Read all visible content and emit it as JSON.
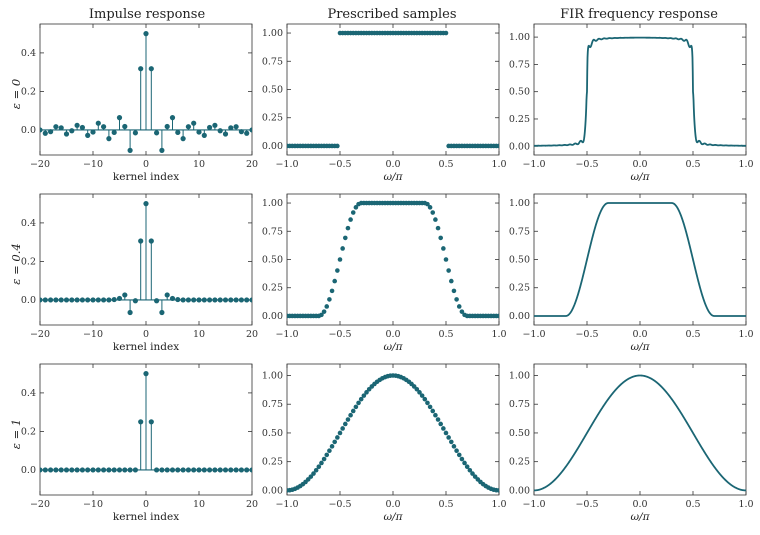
{
  "figure": {
    "column_titles": [
      "Impulse response",
      "Prescribed samples",
      "FIR frequency response"
    ],
    "row_labels": [
      "ε = 0",
      "ε = 0.4",
      "ε = 1"
    ],
    "color": "#1b6674"
  },
  "chart_data": [
    {
      "id": "r0c0",
      "type": "stem",
      "row": 0,
      "col": 0,
      "xlabel": "kernel index",
      "ylabel": "ε = 0",
      "xlim": [
        -20,
        20
      ],
      "ylim": [
        -0.13,
        0.55
      ],
      "xticks": [
        -20,
        -10,
        0,
        10,
        20
      ],
      "xtick_labels": [
        "−20",
        "−10",
        "0",
        "10",
        "20"
      ],
      "yticks": [
        0,
        0.2,
        0.4
      ],
      "ytick_labels": [
        "0.0",
        "0.2",
        "0.4"
      ],
      "x": [
        -20,
        -19,
        -18,
        -17,
        -16,
        -15,
        -14,
        -13,
        -12,
        -11,
        -10,
        -9,
        -8,
        -7,
        -6,
        -5,
        -4,
        -3,
        -2,
        -1,
        0,
        1,
        2,
        3,
        4,
        5,
        6,
        7,
        8,
        9,
        10,
        11,
        12,
        13,
        14,
        15,
        16,
        17,
        18,
        19,
        20
      ],
      "values": [
        0.0,
        -0.017,
        -0.009,
        0.017,
        0.011,
        -0.021,
        -0.004,
        0.024,
        0.013,
        -0.028,
        -0.011,
        0.035,
        0.017,
        -0.045,
        -0.013,
        0.064,
        0.018,
        -0.106,
        -0.015,
        0.318,
        0.5,
        0.318,
        -0.015,
        -0.106,
        0.018,
        0.064,
        -0.013,
        -0.045,
        0.017,
        0.035,
        -0.011,
        -0.028,
        0.013,
        0.024,
        -0.004,
        -0.021,
        0.011,
        0.017,
        -0.009,
        -0.017,
        0.0
      ]
    },
    {
      "id": "r0c1",
      "type": "scatter",
      "row": 0,
      "col": 1,
      "xlabel": "ω/π",
      "xlim": [
        -1,
        1
      ],
      "ylim": [
        -0.08,
        1.08
      ],
      "xticks": [
        -1,
        -0.5,
        0,
        0.5,
        1
      ],
      "xtick_labels": [
        "−1.0",
        "−0.5",
        "0.0",
        "0.5",
        "1.0"
      ],
      "yticks": [
        0,
        0.25,
        0.5,
        0.75,
        1
      ],
      "ytick_labels": [
        "0.00",
        "0.25",
        "0.50",
        "0.75",
        "1.00"
      ],
      "profile": {
        "kind": "step",
        "cutoff": 0.5,
        "n_points": 81
      }
    },
    {
      "id": "r0c2",
      "type": "line",
      "row": 0,
      "col": 2,
      "xlabel": "ω/π",
      "xlim": [
        -1,
        1
      ],
      "ylim": [
        -0.08,
        1.12
      ],
      "xticks": [
        -1,
        -0.5,
        0,
        0.5,
        1
      ],
      "xtick_labels": [
        "−1.0",
        "−0.5",
        "0.0",
        "0.5",
        "1.0"
      ],
      "yticks": [
        0,
        0.25,
        0.5,
        0.75,
        1
      ],
      "ytick_labels": [
        "0.00",
        "0.25",
        "0.50",
        "0.75",
        "1.00"
      ],
      "profile": {
        "kind": "gibbs",
        "cutoff": 0.5,
        "overshoot": 0.09,
        "ripple_period": 0.05
      }
    },
    {
      "id": "r1c0",
      "type": "stem",
      "row": 1,
      "col": 0,
      "xlabel": "kernel index",
      "ylabel": "ε = 0.4",
      "xlim": [
        -20,
        20
      ],
      "ylim": [
        -0.13,
        0.55
      ],
      "xticks": [
        -20,
        -10,
        0,
        10,
        20
      ],
      "xtick_labels": [
        "−20",
        "−10",
        "0",
        "10",
        "20"
      ],
      "yticks": [
        0,
        0.2,
        0.4
      ],
      "ytick_labels": [
        "0.0",
        "0.2",
        "0.4"
      ],
      "x": [
        -20,
        -19,
        -18,
        -17,
        -16,
        -15,
        -14,
        -13,
        -12,
        -11,
        -10,
        -9,
        -8,
        -7,
        -6,
        -5,
        -4,
        -3,
        -2,
        -1,
        0,
        1,
        2,
        3,
        4,
        5,
        6,
        7,
        8,
        9,
        10,
        11,
        12,
        13,
        14,
        15,
        16,
        17,
        18,
        19,
        20
      ],
      "values": [
        0,
        0,
        0,
        0,
        0,
        0,
        0,
        0,
        0,
        0,
        0,
        0,
        0,
        0,
        0.002,
        0.008,
        0.026,
        -0.065,
        -0.004,
        0.306,
        0.5,
        0.306,
        -0.004,
        -0.065,
        0.026,
        0.008,
        0.002,
        0,
        0,
        0,
        0,
        0,
        0,
        0,
        0,
        0,
        0,
        0,
        0,
        0,
        0
      ]
    },
    {
      "id": "r1c1",
      "type": "scatter",
      "row": 1,
      "col": 1,
      "xlabel": "ω/π",
      "xlim": [
        -1,
        1
      ],
      "ylim": [
        -0.08,
        1.08
      ],
      "xticks": [
        -1,
        -0.5,
        0,
        0.5,
        1
      ],
      "xtick_labels": [
        "−1.0",
        "−0.5",
        "0.0",
        "0.5",
        "1.0"
      ],
      "yticks": [
        0,
        0.25,
        0.5,
        0.75,
        1
      ],
      "ytick_labels": [
        "0.00",
        "0.25",
        "0.50",
        "0.75",
        "1.00"
      ],
      "profile": {
        "kind": "raised_cosine",
        "cutoff": 0.5,
        "epsilon": 0.4,
        "n_points": 81
      }
    },
    {
      "id": "r1c2",
      "type": "line",
      "row": 1,
      "col": 2,
      "xlabel": "ω/π",
      "xlim": [
        -1,
        1
      ],
      "ylim": [
        -0.08,
        1.08
      ],
      "xticks": [
        -1,
        -0.5,
        0,
        0.5,
        1
      ],
      "xtick_labels": [
        "−1.0",
        "−0.5",
        "0.0",
        "0.5",
        "1.0"
      ],
      "yticks": [
        0,
        0.25,
        0.5,
        0.75,
        1
      ],
      "ytick_labels": [
        "0.00",
        "0.25",
        "0.50",
        "0.75",
        "1.00"
      ],
      "profile": {
        "kind": "raised_cosine",
        "cutoff": 0.5,
        "epsilon": 0.4
      }
    },
    {
      "id": "r2c0",
      "type": "stem",
      "row": 2,
      "col": 0,
      "xlabel": "kernel index",
      "ylabel": "ε = 1",
      "xlim": [
        -20,
        20
      ],
      "ylim": [
        -0.13,
        0.55
      ],
      "xticks": [
        -20,
        -10,
        0,
        10,
        20
      ],
      "xtick_labels": [
        "−20",
        "−10",
        "0",
        "10",
        "20"
      ],
      "yticks": [
        0,
        0.2,
        0.4
      ],
      "ytick_labels": [
        "0.0",
        "0.2",
        "0.4"
      ],
      "x": [
        -20,
        -19,
        -18,
        -17,
        -16,
        -15,
        -14,
        -13,
        -12,
        -11,
        -10,
        -9,
        -8,
        -7,
        -6,
        -5,
        -4,
        -3,
        -2,
        -1,
        0,
        1,
        2,
        3,
        4,
        5,
        6,
        7,
        8,
        9,
        10,
        11,
        12,
        13,
        14,
        15,
        16,
        17,
        18,
        19,
        20
      ],
      "values": [
        0,
        0,
        0,
        0,
        0,
        0,
        0,
        0,
        0,
        0,
        0,
        0,
        0,
        0,
        0,
        0,
        0,
        0,
        0,
        0.25,
        0.5,
        0.25,
        0,
        0,
        0,
        0,
        0,
        0,
        0,
        0,
        0,
        0,
        0,
        0,
        0,
        0,
        0,
        0,
        0,
        0,
        0
      ]
    },
    {
      "id": "r2c1",
      "type": "scatter",
      "row": 2,
      "col": 1,
      "xlabel": "ω/π",
      "xlim": [
        -1,
        1
      ],
      "ylim": [
        -0.04,
        1.1
      ],
      "xticks": [
        -1,
        -0.5,
        0,
        0.5,
        1
      ],
      "xtick_labels": [
        "−1.0",
        "−0.5",
        "0.0",
        "0.5",
        "1.0"
      ],
      "yticks": [
        0,
        0.25,
        0.5,
        0.75,
        1
      ],
      "ytick_labels": [
        "0.00",
        "0.25",
        "0.50",
        "0.75",
        "1.00"
      ],
      "profile": {
        "kind": "raised_cosine",
        "cutoff": 0.5,
        "epsilon": 1,
        "n_points": 81
      }
    },
    {
      "id": "r2c2",
      "type": "line",
      "row": 2,
      "col": 2,
      "xlabel": "ω/π",
      "xlim": [
        -1,
        1
      ],
      "ylim": [
        -0.04,
        1.1
      ],
      "xticks": [
        -1,
        -0.5,
        0,
        0.5,
        1
      ],
      "xtick_labels": [
        "−1.0",
        "−0.5",
        "0.0",
        "0.5",
        "1.0"
      ],
      "yticks": [
        0,
        0.25,
        0.5,
        0.75,
        1
      ],
      "ytick_labels": [
        "0.00",
        "0.25",
        "0.50",
        "0.75",
        "1.00"
      ],
      "profile": {
        "kind": "raised_cosine",
        "cutoff": 0.5,
        "epsilon": 1
      }
    }
  ]
}
